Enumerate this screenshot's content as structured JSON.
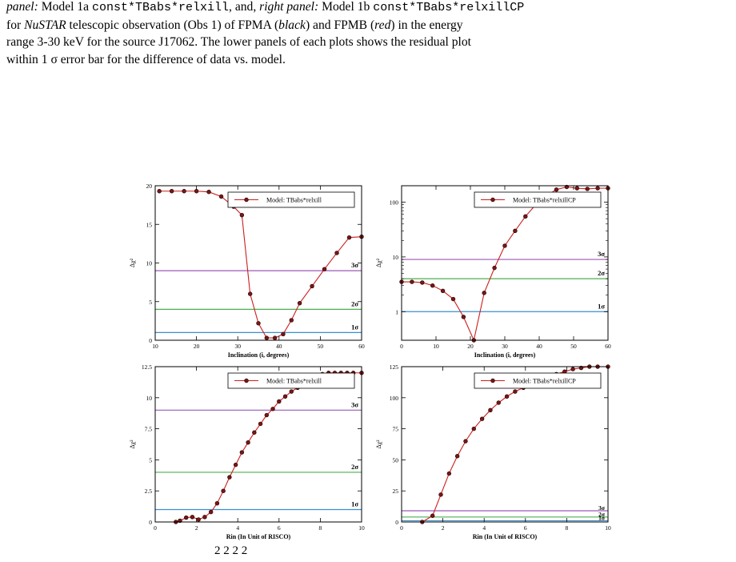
{
  "caption": {
    "line1_a": "panel:",
    "line1_b": " Model 1a ",
    "line1_code1": "const*TBabs*relxill",
    "line1_c": ", and, ",
    "line1_d": "right panel:",
    "line1_e": " Model 1b ",
    "line1_code2": "const*TBabs*relxillCP",
    "line2_a": "for ",
    "line2_b": "NuSTAR",
    "line2_c": " telescopic observation (Obs 1) of FPMA (",
    "line2_d": "black",
    "line2_e": ") and FPMB (",
    "line2_f": "red",
    "line2_g": ") in the energy",
    "line3": "range 3-30 keV for the source J17062. The lower panels of each plots shows the residual plot",
    "line4": "within 1 σ error bar for the difference of data vs. model."
  },
  "bottom_fragment": "2        2        2        2",
  "colors": {
    "curve": "#cc1f1f",
    "marker": "#7a1616",
    "sigma3": "#9b59b6",
    "sigma2": "#4caf50",
    "sigma1": "#3b8fd1"
  },
  "chart_data": [
    {
      "type": "line",
      "legend": "Model: TBabs*relxill",
      "xlabel": "Inclination (i, degrees)",
      "ylabel": "Δχ²",
      "xlim": [
        10,
        60
      ],
      "ylim": [
        0,
        20
      ],
      "yscale": "linear",
      "xticks": [
        "10",
        "20",
        "30",
        "40",
        "50",
        "60"
      ],
      "yticks": [
        "0",
        "5",
        "10",
        "15",
        "20"
      ],
      "x": [
        11,
        14,
        17,
        20,
        23,
        26,
        29,
        31,
        33,
        35,
        37,
        39,
        41,
        43,
        45,
        48,
        51,
        54,
        57,
        60
      ],
      "y": [
        19.3,
        19.3,
        19.3,
        19.3,
        19.2,
        18.6,
        17.3,
        16.2,
        6.0,
        2.2,
        0.3,
        0.3,
        0.8,
        2.6,
        4.8,
        7.0,
        9.2,
        11.3,
        13.3,
        13.4
      ],
      "sigma_levels": [
        {
          "label": "3σ",
          "value": 9
        },
        {
          "label": "2σ",
          "value": 4
        },
        {
          "label": "1σ",
          "value": 1
        }
      ]
    },
    {
      "type": "line",
      "legend": "Model: TBabs*relxillCP",
      "xlabel": "Inclination (i, degrees)",
      "ylabel": "Δχ²",
      "xlim": [
        0,
        60
      ],
      "ylim": [
        0.3,
        200
      ],
      "yscale": "log",
      "xticks": [
        "0",
        "10",
        "20",
        "30",
        "40",
        "50",
        "60"
      ],
      "yticks": [
        "1",
        "10",
        "100"
      ],
      "x": [
        0,
        3,
        6,
        9,
        12,
        15,
        18,
        21,
        24,
        27,
        30,
        33,
        36,
        39,
        42,
        45,
        48,
        51,
        54,
        57,
        60
      ],
      "y": [
        3.5,
        3.5,
        3.4,
        3.0,
        2.4,
        1.7,
        0.8,
        0.18,
        2.2,
        6.3,
        16,
        30,
        55,
        90,
        130,
        170,
        190,
        180,
        175,
        180,
        180
      ],
      "sigma_levels": [
        {
          "label": "3σ",
          "value": 9
        },
        {
          "label": "2σ",
          "value": 4
        },
        {
          "label": "1σ",
          "value": 1
        }
      ]
    },
    {
      "type": "line",
      "legend": "Model: TBabs*relxill",
      "xlabel": "Rin (In Unit of RISCO)",
      "ylabel": "Δχ²",
      "xlim": [
        0,
        10
      ],
      "ylim": [
        0,
        12.5
      ],
      "yscale": "linear",
      "xticks": [
        "0",
        "2",
        "4",
        "6",
        "8",
        "10"
      ],
      "yticks": [
        "0",
        "2.5",
        "5",
        "7.5",
        "10",
        "12.5"
      ],
      "x": [
        1.0,
        1.2,
        1.5,
        1.8,
        2.1,
        2.4,
        2.7,
        3.0,
        3.3,
        3.6,
        3.9,
        4.2,
        4.5,
        4.8,
        5.1,
        5.4,
        5.7,
        6.0,
        6.3,
        6.6,
        6.9,
        7.2,
        7.5,
        7.8,
        8.1,
        8.4,
        8.7,
        9.0,
        9.3,
        9.6,
        10.0
      ],
      "y": [
        0,
        0.1,
        0.35,
        0.4,
        0.2,
        0.4,
        0.8,
        1.5,
        2.5,
        3.6,
        4.6,
        5.6,
        6.4,
        7.2,
        7.9,
        8.6,
        9.1,
        9.7,
        10.1,
        10.5,
        10.8,
        11.1,
        11.4,
        11.7,
        11.9,
        12.0,
        12.0,
        12.0,
        12.0,
        12.0,
        12.0
      ],
      "sigma_levels": [
        {
          "label": "3σ",
          "value": 9
        },
        {
          "label": "2σ",
          "value": 4
        },
        {
          "label": "1σ",
          "value": 1
        }
      ]
    },
    {
      "type": "line",
      "legend": "Model: TBabs*relxillCP",
      "xlabel": "Rin (In Unit of RISCO)",
      "ylabel": "Δχ²",
      "xlim": [
        0,
        10
      ],
      "ylim": [
        0,
        125
      ],
      "yscale": "linear",
      "xticks": [
        "0",
        "2",
        "4",
        "6",
        "8",
        "10"
      ],
      "yticks": [
        "0",
        "25",
        "50",
        "75",
        "100",
        "125"
      ],
      "x": [
        1.0,
        1.5,
        1.9,
        2.3,
        2.7,
        3.1,
        3.5,
        3.9,
        4.3,
        4.7,
        5.1,
        5.5,
        5.9,
        6.3,
        6.7,
        7.1,
        7.5,
        7.9,
        8.3,
        8.7,
        9.1,
        9.5,
        10.0
      ],
      "y": [
        0,
        5,
        22,
        39,
        53,
        65,
        75,
        83,
        90,
        96,
        101,
        105,
        108,
        111,
        114,
        117,
        119,
        121,
        123,
        124,
        125,
        126,
        126
      ],
      "sigma_levels": [
        {
          "label": "3σ",
          "value": 9
        },
        {
          "label": "2σ",
          "value": 4
        },
        {
          "label": "1σ",
          "value": 1
        }
      ]
    }
  ]
}
